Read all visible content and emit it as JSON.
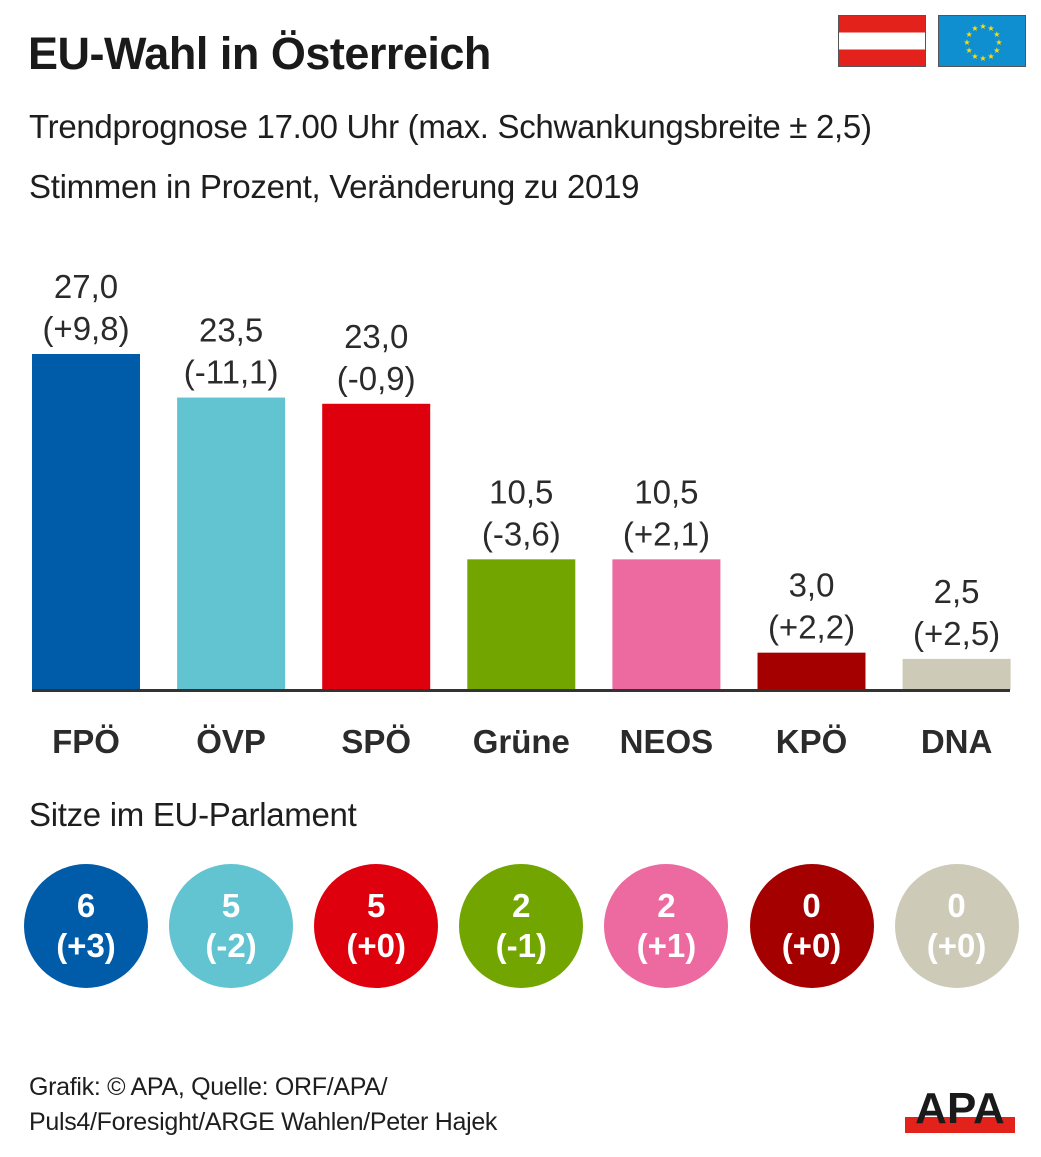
{
  "header": {
    "title": "EU-Wahl in Österreich",
    "subtitle": "Trendprognose 17.00 Uhr (max. Schwankungsbreite ± 2,5)",
    "subtitle2": "Stimmen in Prozent, Veränderung zu 2019",
    "flags": [
      "austria-flag",
      "eu-flag"
    ]
  },
  "chart_data": {
    "type": "bar",
    "title": "EU-Wahl in Österreich",
    "subtitle": "Trendprognose 17.00 Uhr (max. Schwankungsbreite ± 2,5)",
    "ylabel": "Stimmen in Prozent",
    "xlabel": "",
    "categories": [
      "FPÖ",
      "ÖVP",
      "SPÖ",
      "Grüne",
      "NEOS",
      "KPÖ",
      "DNA"
    ],
    "values": [
      27.0,
      23.5,
      23.0,
      10.5,
      10.5,
      3.0,
      2.5
    ],
    "value_labels": [
      "27,0",
      "23,5",
      "23,0",
      "10,5",
      "10,5",
      "3,0",
      "2,5"
    ],
    "changes": [
      9.8,
      -11.1,
      -0.9,
      -3.6,
      2.1,
      2.2,
      2.5
    ],
    "change_labels": [
      "(+9,8)",
      "(-11,1)",
      "(-0,9)",
      "(-3,6)",
      "(+2,1)",
      "(+2,2)",
      "(+2,5)"
    ],
    "change_reference": "Veränderung zu 2019",
    "colors": [
      "#005ca9",
      "#62c4d0",
      "#df000e",
      "#72a500",
      "#ec6aa0",
      "#a40000",
      "#cdcbb8"
    ],
    "ylim": [
      0,
      27.0
    ],
    "grid": false,
    "legend": "none"
  },
  "seats": {
    "title": "Sitze im EU-Parlament",
    "items": [
      {
        "party": "FPÖ",
        "seats": "6",
        "change": "(+3)",
        "color": "#005ca9"
      },
      {
        "party": "ÖVP",
        "seats": "5",
        "change": "(-2)",
        "color": "#62c4d0"
      },
      {
        "party": "SPÖ",
        "seats": "5",
        "change": "(+0)",
        "color": "#df000e"
      },
      {
        "party": "Grüne",
        "seats": "2",
        "change": "(-1)",
        "color": "#72a500"
      },
      {
        "party": "NEOS",
        "seats": "2",
        "change": "(+1)",
        "color": "#ec6aa0"
      },
      {
        "party": "KPÖ",
        "seats": "0",
        "change": "(+0)",
        "color": "#a40000"
      },
      {
        "party": "DNA",
        "seats": "0",
        "change": "(+0)",
        "color": "#cdcbb8"
      }
    ]
  },
  "footer": {
    "line1": "Grafik: © APA, Quelle: ORF/APA/",
    "line2": "Puls4/Foresight/ARGE Wahlen/Peter Hajek",
    "logo_text": "APA",
    "logo_colors": {
      "text": "#1a1a1a",
      "bar": "#e3231b"
    }
  }
}
